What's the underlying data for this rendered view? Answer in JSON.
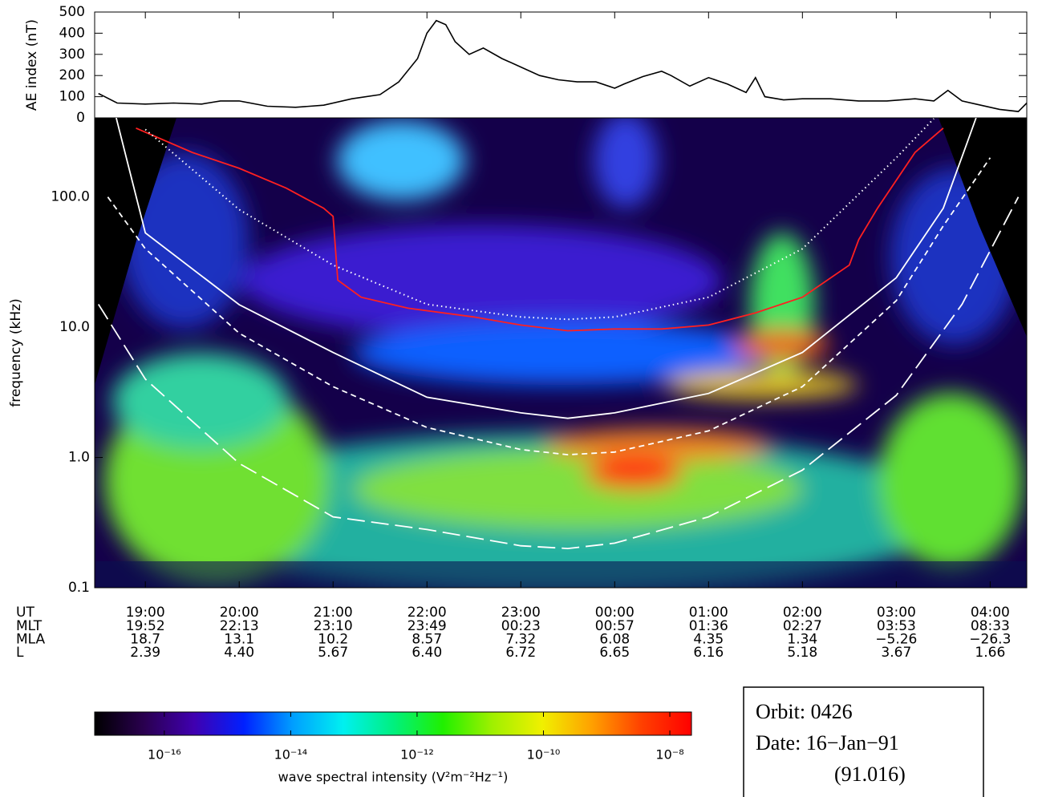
{
  "chart_data": [
    {
      "type": "line",
      "y_label": "AE index (nT)",
      "xlim": [
        18.46,
        28.39
      ],
      "ylim": [
        0,
        500
      ],
      "yticks": [
        0,
        100,
        200,
        300,
        400,
        500
      ],
      "color": "#000000",
      "x": [
        18.5,
        18.7,
        19.0,
        19.3,
        19.6,
        19.8,
        20.0,
        20.3,
        20.6,
        20.9,
        21.2,
        21.5,
        21.7,
        21.9,
        22.0,
        22.1,
        22.2,
        22.3,
        22.45,
        22.6,
        22.8,
        23.0,
        23.2,
        23.4,
        23.6,
        23.8,
        24.0,
        24.1,
        24.3,
        24.5,
        24.6,
        24.8,
        25.0,
        25.2,
        25.4,
        25.5,
        25.6,
        25.8,
        26.0,
        26.3,
        26.6,
        26.9,
        27.2,
        27.4,
        27.55,
        27.7,
        27.9,
        28.1,
        28.3,
        28.39
      ],
      "values": [
        115,
        70,
        65,
        70,
        65,
        80,
        80,
        55,
        50,
        60,
        90,
        110,
        170,
        280,
        400,
        460,
        440,
        360,
        300,
        330,
        280,
        240,
        200,
        180,
        170,
        170,
        140,
        160,
        195,
        220,
        200,
        150,
        190,
        160,
        120,
        190,
        100,
        85,
        90,
        90,
        80,
        80,
        90,
        80,
        130,
        80,
        60,
        40,
        30,
        70
      ]
    },
    {
      "type": "spectrogram",
      "y_label": "frequency  (kHz)",
      "log_scale": true,
      "xlim": [
        18.46,
        28.39
      ],
      "ylim": [
        0.1,
        405
      ],
      "yticks": [
        0.1,
        {
          "value": 1,
          "label": "1.0"
        },
        {
          "value": 10,
          "label": "10.0"
        },
        {
          "value": 100,
          "label": "100.0"
        }
      ],
      "xticks": [
        {
          "value": 19,
          "label": "19:00"
        },
        {
          "value": 20,
          "label": "20:00"
        },
        {
          "value": 21,
          "label": "21:00"
        },
        {
          "value": 22,
          "label": "22:00"
        },
        {
          "value": 23,
          "label": "23:00"
        },
        {
          "value": 24,
          "label": "00:00"
        },
        {
          "value": 25,
          "label": "01:00"
        },
        {
          "value": 26,
          "label": "02:00"
        },
        {
          "value": 27,
          "label": "03:00"
        },
        {
          "value": 28,
          "label": "04:00"
        }
      ],
      "x_label": "UT",
      "ephemeris_rows": [
        {
          "label": "MLT",
          "values": [
            "19:52",
            "22:13",
            "23:10",
            "23:49",
            "00:23",
            "00:57",
            "01:36",
            "02:27",
            "03:53",
            "08:33"
          ]
        },
        {
          "label": "MLA",
          "values": [
            "18.7",
            "13.1",
            "10.2",
            "8.57",
            "7.32",
            "6.08",
            "4.35",
            "1.34",
            "−5.26",
            "−26.3"
          ]
        },
        {
          "label": "L",
          "values": [
            "2.39",
            "4.40",
            "5.67",
            "6.40",
            "6.72",
            "6.65",
            "6.16",
            "5.18",
            "3.67",
            "1.66"
          ]
        }
      ],
      "series": [
        {
          "color": "#ff2020",
          "dash": "solid",
          "x": [
            18.9,
            19.5,
            20.0,
            20.5,
            20.9,
            21.0,
            21.05,
            21.3,
            21.8,
            22.5,
            23.0,
            23.5,
            24.0,
            24.5,
            25.0,
            25.5,
            26.0,
            26.5,
            26.6,
            26.8,
            27.2,
            27.5
          ],
          "values": [
            338,
            220,
            166,
            117,
            82,
            71,
            23,
            17,
            14,
            12,
            10.4,
            9.4,
            9.7,
            9.7,
            10.4,
            12.9,
            17,
            30,
            47,
            82,
            220,
            338
          ]
        },
        {
          "color": "#ffffff",
          "dash": "solid",
          "x": [
            18.69,
            19.0,
            20.0,
            21.0,
            22.0,
            23.0,
            23.5,
            24.0,
            25.0,
            26.0,
            27.0,
            27.5,
            27.75,
            27.85
          ],
          "values": [
            405,
            53,
            14.9,
            6.4,
            2.9,
            2.2,
            2.0,
            2.2,
            3.1,
            6.4,
            24,
            82,
            255,
            405
          ]
        },
        {
          "color": "#ffffff",
          "dash": "dotted",
          "x": [
            19.0,
            20.0,
            21.0,
            22.0,
            23.0,
            23.5,
            24.0,
            25.0,
            26.0,
            27.0,
            27.4
          ],
          "values": [
            330,
            80,
            30,
            15,
            12,
            11.5,
            12,
            17,
            40,
            200,
            400
          ]
        },
        {
          "color": "#ffffff",
          "dash": "short",
          "x": [
            18.6,
            19.0,
            20.0,
            21.0,
            22.0,
            23.0,
            23.5,
            24.0,
            25.0,
            26.0,
            27.0,
            27.5,
            28.0
          ],
          "values": [
            100,
            40,
            9,
            3.5,
            1.7,
            1.15,
            1.05,
            1.1,
            1.6,
            3.5,
            16,
            60,
            200
          ]
        },
        {
          "color": "#ffffff",
          "dash": "long",
          "x": [
            18.5,
            19.0,
            20.0,
            21.0,
            22.0,
            23.0,
            23.5,
            24.0,
            25.0,
            26.0,
            27.0,
            27.7,
            28.3
          ],
          "values": [
            15,
            4,
            0.9,
            0.35,
            0.28,
            0.21,
            0.2,
            0.22,
            0.35,
            0.8,
            3,
            15,
            100
          ]
        }
      ]
    },
    {
      "type": "colorbar",
      "label": "wave spectral intensity  (V²m⁻²Hz⁻¹)",
      "log_scale": true,
      "xlim": [
        7.9e-18,
        2.2e-08
      ],
      "colors": [
        "#000000",
        "#2a0050",
        "#4000b0",
        "#0020ff",
        "#00a0ff",
        "#00f0f0",
        "#00f080",
        "#20f000",
        "#a0f000",
        "#f0f000",
        "#ffa000",
        "#ff4000",
        "#ff0000"
      ],
      "xticks": [
        {
          "value": 1e-16,
          "label": "10⁻¹⁶"
        },
        {
          "value": 1e-14,
          "label": "10⁻¹⁴"
        },
        {
          "value": 1e-12,
          "label": "10⁻¹²"
        },
        {
          "value": 1e-10,
          "label": "10⁻¹⁰"
        },
        {
          "value": 1e-08,
          "label": "10⁻⁸"
        }
      ]
    }
  ],
  "info": {
    "orbit": "Orbit: 0426",
    "date": "Date:  16−Jan−91",
    "day": "(91.016)"
  }
}
